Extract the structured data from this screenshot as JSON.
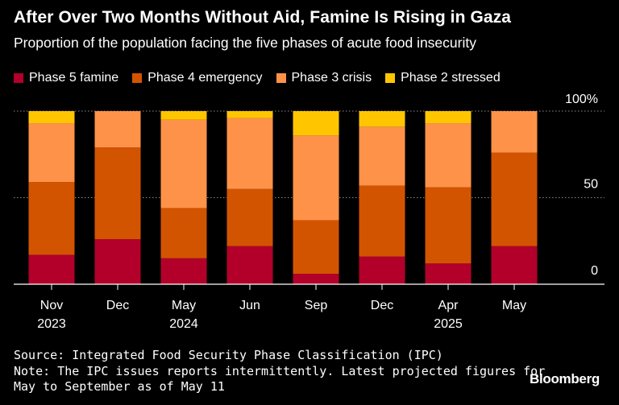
{
  "title": "After Over Two Months Without Aid, Famine Is Rising in Gaza",
  "subtitle": "Proportion of the population facing the five phases of acute food insecurity",
  "legend": [
    {
      "label": "Phase 5 famine",
      "color": "#b2002b"
    },
    {
      "label": "Phase 4 emergency",
      "color": "#d35400"
    },
    {
      "label": "Phase 3 crisis",
      "color": "#ff9249"
    },
    {
      "label": "Phase 2 stressed",
      "color": "#ffc600"
    }
  ],
  "chart_data": {
    "type": "bar",
    "stacked": true,
    "categories": [
      {
        "line1": "Nov",
        "line2": "2023"
      },
      {
        "line1": "Dec",
        "line2": ""
      },
      {
        "line1": "May",
        "line2": "2024"
      },
      {
        "line1": "Jun",
        "line2": ""
      },
      {
        "line1": "Sep",
        "line2": ""
      },
      {
        "line1": "Dec",
        "line2": ""
      },
      {
        "line1": "Apr",
        "line2": "2025"
      },
      {
        "line1": "May",
        "line2": ""
      }
    ],
    "series": [
      {
        "name": "Phase 5 famine",
        "color": "#b2002b",
        "values": [
          17,
          26,
          15,
          22,
          6,
          16,
          12,
          22
        ]
      },
      {
        "name": "Phase 4 emergency",
        "color": "#d35400",
        "values": [
          42,
          53,
          29,
          33,
          31,
          41,
          44,
          54
        ]
      },
      {
        "name": "Phase 3 crisis",
        "color": "#ff9249",
        "values": [
          34,
          21,
          51,
          41,
          49,
          34,
          37,
          24
        ]
      },
      {
        "name": "Phase 2 stressed",
        "color": "#ffc600",
        "values": [
          7,
          0,
          5,
          4,
          14,
          9,
          7,
          0
        ]
      }
    ],
    "ylim": [
      0,
      100
    ],
    "yticks": [
      {
        "value": 0,
        "label": "0"
      },
      {
        "value": 50,
        "label": "50"
      },
      {
        "value": 100,
        "label": "100%"
      }
    ]
  },
  "footer": {
    "source": "Source: Integrated Food Security Phase Classification (IPC)",
    "note_line1": "Note: The IPC issues reports intermittently. Latest projected figures for",
    "note_line2": "May to September as of May 11"
  },
  "brand": "Bloomberg"
}
